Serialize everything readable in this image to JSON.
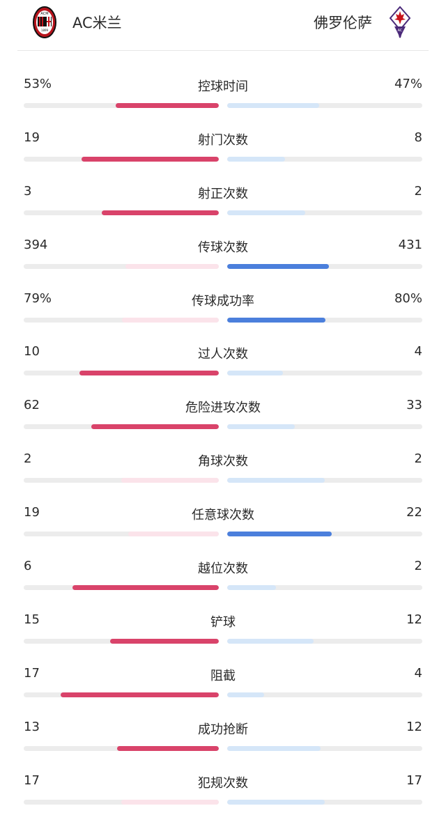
{
  "header": {
    "home_team": "AC米兰",
    "away_team": "佛罗伦萨",
    "home_logo": "ac-milan-crest-icon",
    "away_logo": "fiorentina-crest-icon"
  },
  "colors": {
    "home_strong": "#d9436a",
    "home_pale": "#fbe3ea",
    "away_strong": "#4b7fdc",
    "away_pale": "#d5e6f8",
    "track": "#ececec"
  },
  "stats": [
    {
      "label": "控球时间",
      "home": "53%",
      "away": "47%",
      "h": 53,
      "a": 47
    },
    {
      "label": "射门次数",
      "home": "19",
      "away": "8",
      "h": 19,
      "a": 8
    },
    {
      "label": "射正次数",
      "home": "3",
      "away": "2",
      "h": 3,
      "a": 2
    },
    {
      "label": "传球次数",
      "home": "394",
      "away": "431",
      "h": 394,
      "a": 431
    },
    {
      "label": "传球成功率",
      "home": "79%",
      "away": "80%",
      "h": 79,
      "a": 80
    },
    {
      "label": "过人次数",
      "home": "10",
      "away": "4",
      "h": 10,
      "a": 4
    },
    {
      "label": "危险进攻次数",
      "home": "62",
      "away": "33",
      "h": 62,
      "a": 33
    },
    {
      "label": "角球次数",
      "home": "2",
      "away": "2",
      "h": 2,
      "a": 2
    },
    {
      "label": "任意球次数",
      "home": "19",
      "away": "22",
      "h": 19,
      "a": 22
    },
    {
      "label": "越位次数",
      "home": "6",
      "away": "2",
      "h": 6,
      "a": 2
    },
    {
      "label": "铲球",
      "home": "15",
      "away": "12",
      "h": 15,
      "a": 12
    },
    {
      "label": "阻截",
      "home": "17",
      "away": "4",
      "h": 17,
      "a": 4
    },
    {
      "label": "成功抢断",
      "home": "13",
      "away": "12",
      "h": 13,
      "a": 12
    },
    {
      "label": "犯规次数",
      "home": "17",
      "away": "17",
      "h": 17,
      "a": 17
    }
  ]
}
